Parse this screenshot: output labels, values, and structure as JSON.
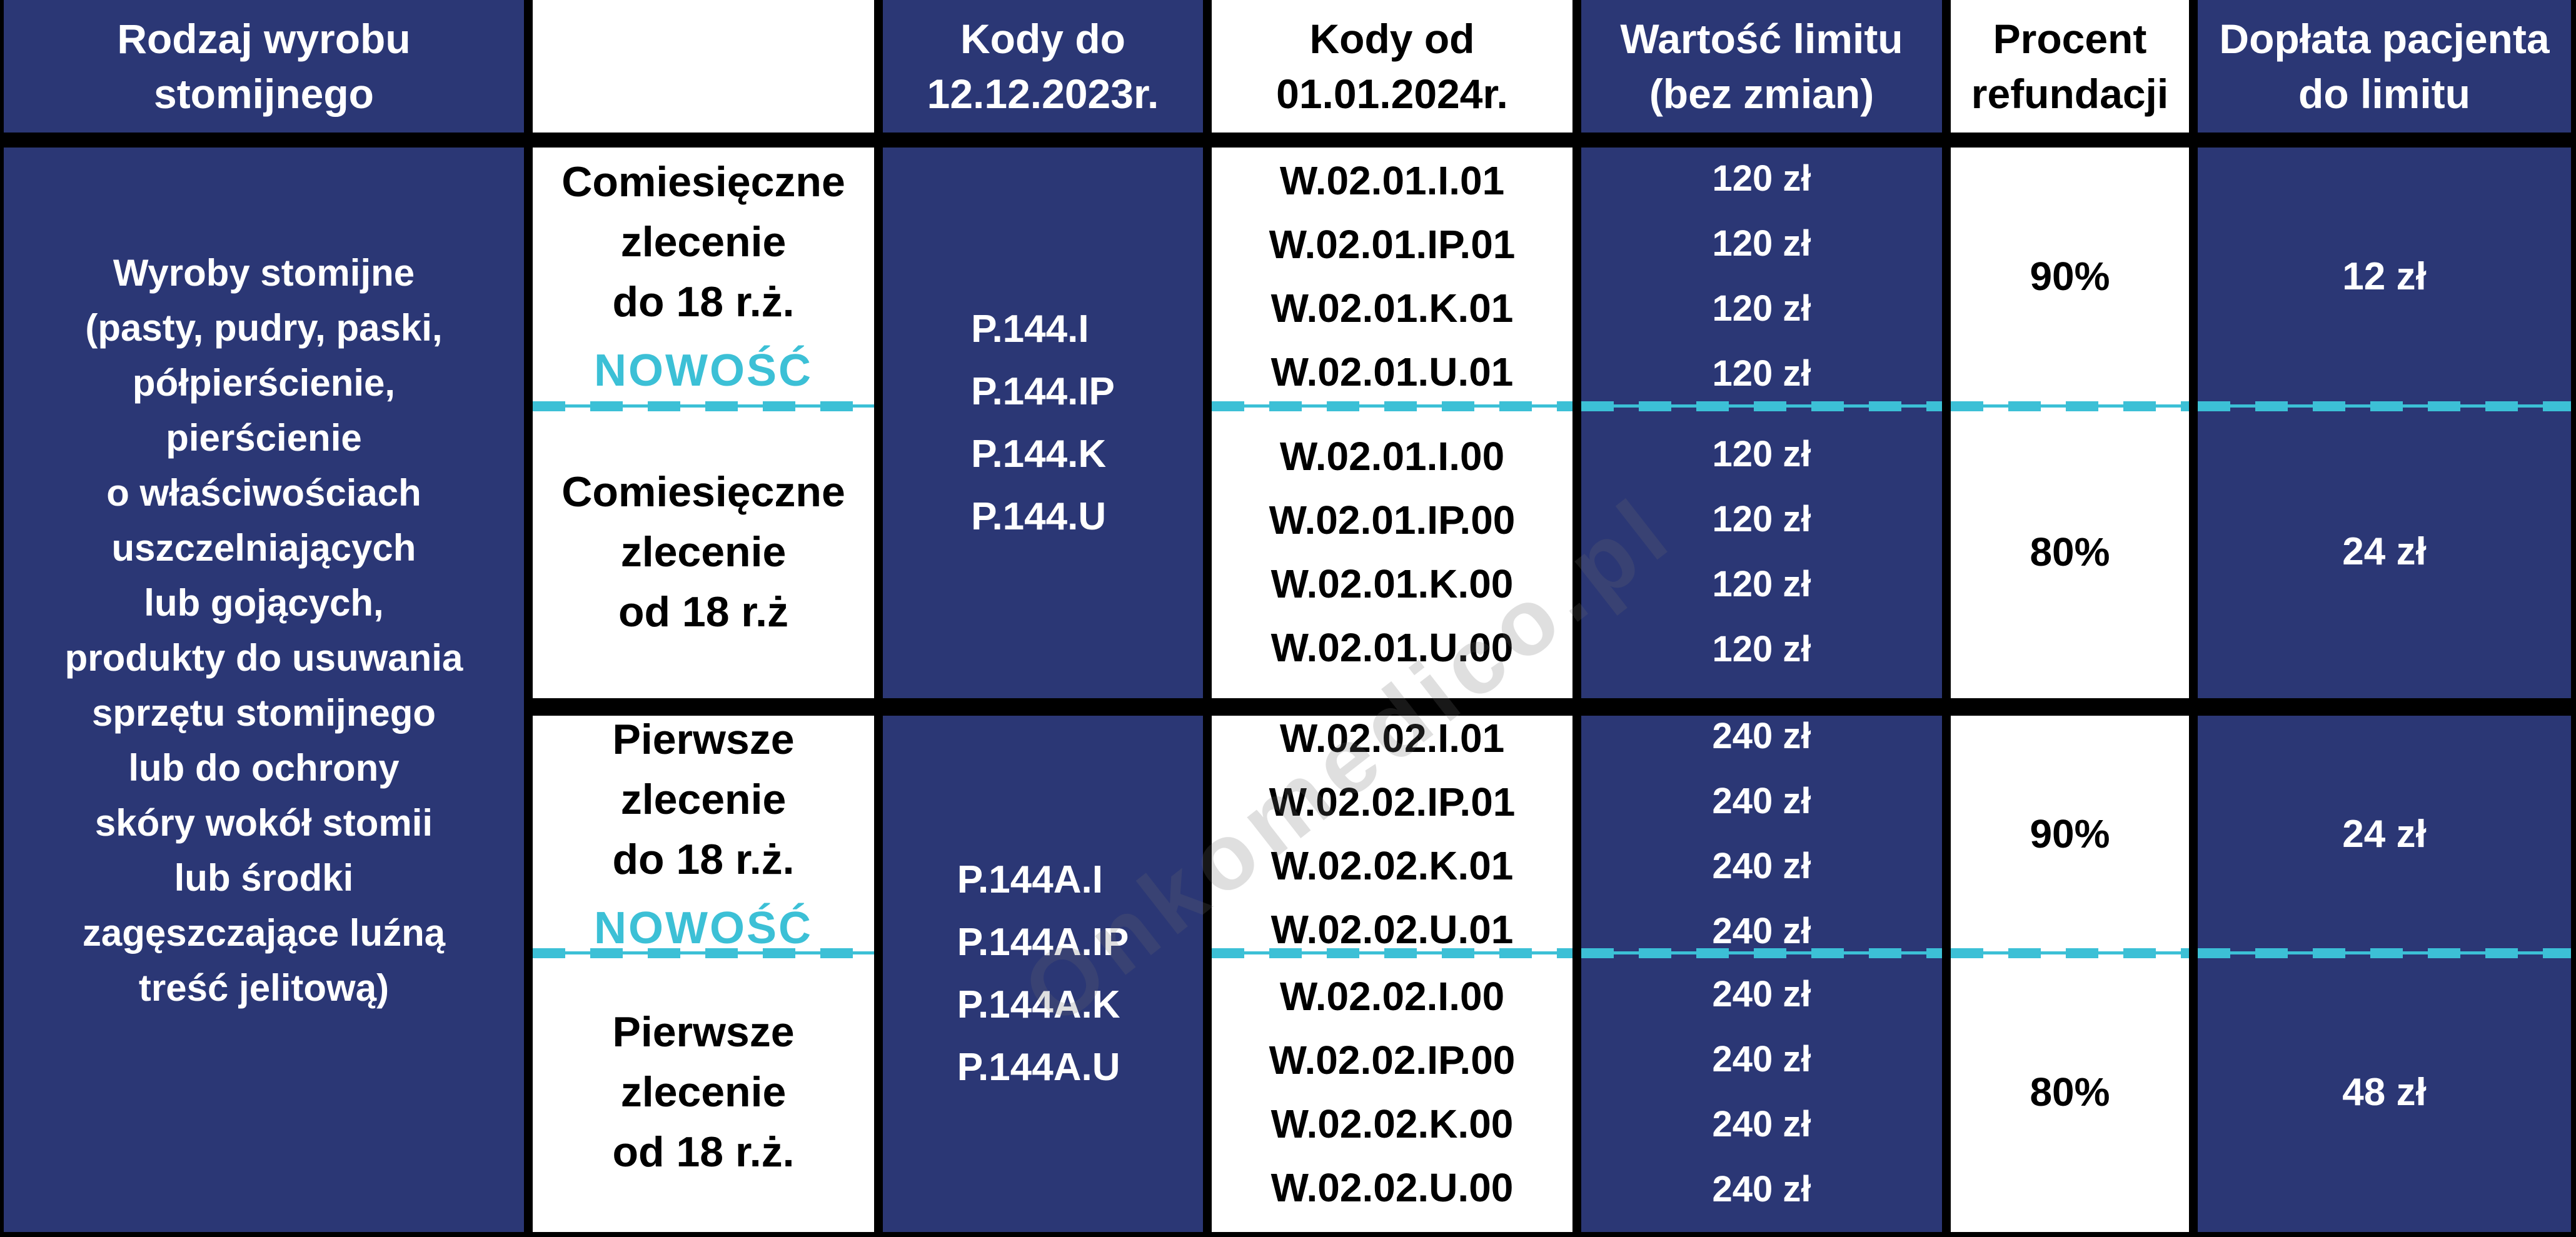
{
  "colors": {
    "navy": "#2b3775",
    "cyan": "#3cc0d6",
    "ink": "#000000",
    "paper": "#ffffff"
  },
  "header": {
    "product": {
      "line1": "Rodzaj wyrobu",
      "line2": "stomijnego"
    },
    "order_type": "",
    "codes_old": {
      "line1": "Kody do",
      "line2": "12.12.2023r."
    },
    "codes_new": {
      "line1": "Kody od",
      "line2": "01.01.2024r."
    },
    "limit": {
      "line1": "Wartość limitu",
      "line2": "(bez zmian)"
    },
    "refund": {
      "line1": "Procent",
      "line2": "refundacji"
    },
    "copay": {
      "line1": "Dopłata pacjenta",
      "line2": "do limitu"
    }
  },
  "product": {
    "lines": [
      "Wyroby stomijne",
      "(pasty, pudry, paski,",
      "półpierścienie,",
      "pierścienie",
      "o właściwościach",
      "uszczelniających",
      "lub gojących,",
      "produkty do usuwania",
      "sprzętu stomijnego",
      "lub do ochrony",
      "skóry wokół stomii",
      "lub środki",
      "zagęszczające luźną",
      "treść jelitową)"
    ]
  },
  "sections": [
    {
      "codes_old": [
        "P.144.I",
        "P.144.IP",
        "P.144.K",
        "P.144.U"
      ],
      "rows": [
        {
          "order": [
            "Comiesięczne",
            "zlecenie",
            "do 18 r.ż."
          ],
          "badge": "NOWOŚĆ",
          "codes_new": [
            "W.02.01.I.01",
            "W.02.01.IP.01",
            "W.02.01.K.01",
            "W.02.01.U.01"
          ],
          "limits": [
            "120 zł",
            "120 zł",
            "120 zł",
            "120 zł"
          ],
          "refund": "90%",
          "copay": "12 zł"
        },
        {
          "order": [
            "Comiesięczne",
            "zlecenie",
            "od 18 r.ż"
          ],
          "badge": "",
          "codes_new": [
            "W.02.01.I.00",
            "W.02.01.IP.00",
            "W.02.01.K.00",
            "W.02.01.U.00"
          ],
          "limits": [
            "120 zł",
            "120 zł",
            "120 zł",
            "120 zł"
          ],
          "refund": "80%",
          "copay": "24 zł"
        }
      ]
    },
    {
      "codes_old": [
        "P.144A.I",
        "P.144A.IP",
        "P.144A.K",
        "P.144A.U"
      ],
      "rows": [
        {
          "order": [
            "Pierwsze",
            "zlecenie",
            "do 18 r.ż."
          ],
          "badge": "NOWOŚĆ",
          "codes_new": [
            "W.02.02.I.01",
            "W.02.02.IP.01",
            "W.02.02.K.01",
            "W.02.02.U.01"
          ],
          "limits": [
            "240 zł",
            "240 zł",
            "240 zł",
            "240 zł"
          ],
          "refund": "90%",
          "copay": "24 zł"
        },
        {
          "order": [
            "Pierwsze",
            "zlecenie",
            "od 18 r.ż."
          ],
          "badge": "",
          "codes_new": [
            "W.02.02.I.00",
            "W.02.02.IP.00",
            "W.02.02.K.00",
            "W.02.02.U.00"
          ],
          "limits": [
            "240 zł",
            "240 zł",
            "240 zł",
            "240 zł"
          ],
          "refund": "80%",
          "copay": "48 zł"
        }
      ]
    }
  ],
  "watermark": "Onkomedico.pl"
}
